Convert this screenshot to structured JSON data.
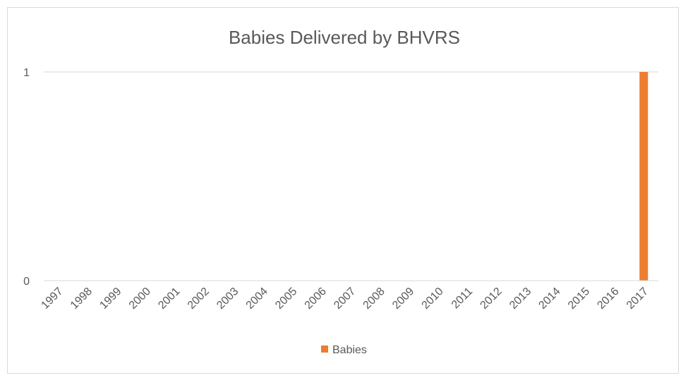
{
  "chart_data": {
    "type": "bar",
    "title": "Babies Delivered  by BHVRS",
    "xlabel": "",
    "ylabel": "",
    "categories": [
      "1997",
      "1998",
      "1999",
      "2000",
      "2001",
      "2002",
      "2003",
      "2004",
      "2005",
      "2006",
      "2007",
      "2008",
      "2009",
      "2010",
      "2011",
      "2012",
      "2013",
      "2014",
      "2015",
      "2016",
      "2017"
    ],
    "series": [
      {
        "name": "Babies",
        "color": "#ED7D31",
        "values": [
          0,
          0,
          0,
          0,
          0,
          0,
          0,
          0,
          0,
          0,
          0,
          0,
          0,
          0,
          0,
          0,
          0,
          0,
          0,
          0,
          1
        ]
      }
    ],
    "ylim": [
      0,
      1
    ],
    "yticks": [
      0,
      1
    ],
    "grid": true,
    "legend": "bottom"
  }
}
